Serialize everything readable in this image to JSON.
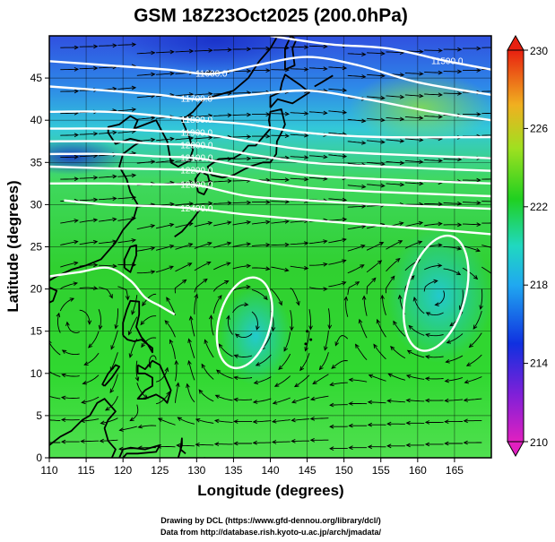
{
  "title": "GSM 18Z23Oct2025 (200.0hPa)",
  "xlabel": "Longitude (degrees)",
  "ylabel": "Latitude  (degrees)",
  "credits": [
    "Drawing by DCL (https://www.gfd-dennou.org/library/dcl/)",
    "Data from http://database.rish.kyoto-u.ac.jp/arch/jmadata/"
  ],
  "colors": {
    "low": "#d020c0",
    "mid_low": "#1030e0",
    "mid": "#20c8e8",
    "mid_high": "#20d020",
    "high": "#e82010",
    "coast": "#000000",
    "contour": "#ffffff"
  },
  "chart_data": {
    "type": "heatmap",
    "x": {
      "range": [
        110,
        170
      ],
      "ticks": [
        110,
        115,
        120,
        125,
        130,
        135,
        140,
        145,
        150,
        155,
        160,
        165
      ]
    },
    "y": {
      "range": [
        0,
        50
      ],
      "ticks": [
        0,
        5,
        10,
        15,
        20,
        25,
        30,
        35,
        40,
        45
      ]
    },
    "colorbar": {
      "range": [
        210,
        230
      ],
      "ticks": [
        "210",
        "214",
        "218",
        "222",
        "226",
        "230"
      ]
    },
    "contours": [
      {
        "label": "11500.0",
        "lon": 164,
        "lat": 47,
        "points": [
          [
            140,
            50
          ],
          [
            148,
            49
          ],
          [
            156,
            48.5
          ],
          [
            164,
            47
          ],
          [
            170,
            46
          ]
        ]
      },
      {
        "label": "11600.0",
        "lon": 132,
        "lat": 45.5,
        "points": [
          [
            110,
            47
          ],
          [
            118,
            46.5
          ],
          [
            126,
            46
          ],
          [
            132,
            45.5
          ],
          [
            138,
            46.5
          ],
          [
            145,
            47.5
          ],
          [
            152,
            46.5
          ],
          [
            160,
            44.5
          ],
          [
            170,
            43
          ]
        ]
      },
      {
        "label": "11700.0",
        "lon": 130,
        "lat": 42.5,
        "points": [
          [
            110,
            44
          ],
          [
            118,
            43.5
          ],
          [
            125,
            43
          ],
          [
            130,
            42.5
          ],
          [
            137,
            43
          ],
          [
            145,
            43.5
          ],
          [
            153,
            42.5
          ],
          [
            162,
            41
          ],
          [
            170,
            40
          ]
        ]
      },
      {
        "label": "11800.0",
        "lon": 130,
        "lat": 40,
        "points": [
          [
            110,
            41
          ],
          [
            118,
            41
          ],
          [
            125,
            40.5
          ],
          [
            130,
            40
          ],
          [
            137,
            39.5
          ],
          [
            145,
            38.5
          ],
          [
            155,
            38
          ],
          [
            170,
            38
          ]
        ]
      },
      {
        "label": "11900.0",
        "lon": 130,
        "lat": 38.5,
        "points": [
          [
            110,
            39
          ],
          [
            118,
            39
          ],
          [
            125,
            38.7
          ],
          [
            130,
            38.5
          ],
          [
            137,
            37.5
          ],
          [
            145,
            36.5
          ],
          [
            155,
            36
          ],
          [
            170,
            35.5
          ]
        ]
      },
      {
        "label": "12000.0",
        "lon": 130,
        "lat": 37,
        "points": [
          [
            110,
            37.5
          ],
          [
            118,
            37.5
          ],
          [
            125,
            37.2
          ],
          [
            130,
            37
          ],
          [
            137,
            36
          ],
          [
            145,
            35
          ],
          [
            155,
            34.5
          ],
          [
            170,
            34
          ]
        ]
      },
      {
        "label": "12100.0",
        "lon": 130,
        "lat": 35.5,
        "points": [
          [
            110,
            36
          ],
          [
            118,
            36
          ],
          [
            125,
            35.7
          ],
          [
            130,
            35.5
          ],
          [
            137,
            34.5
          ],
          [
            145,
            33.5
          ],
          [
            155,
            33
          ],
          [
            170,
            32.5
          ]
        ]
      },
      {
        "label": "12200.0",
        "lon": 130,
        "lat": 34,
        "points": [
          [
            110,
            34.5
          ],
          [
            118,
            34.3
          ],
          [
            125,
            34.2
          ],
          [
            130,
            34
          ],
          [
            137,
            33
          ],
          [
            145,
            32
          ],
          [
            155,
            31.5
          ],
          [
            170,
            31
          ]
        ]
      },
      {
        "label": "12300.0",
        "lon": 130,
        "lat": 32.3,
        "points": [
          [
            110,
            32.5
          ],
          [
            118,
            32.5
          ],
          [
            125,
            32.4
          ],
          [
            130,
            32.3
          ],
          [
            137,
            31
          ],
          [
            145,
            30.5
          ],
          [
            155,
            30
          ],
          [
            170,
            29.5
          ]
        ]
      },
      {
        "label": "12400.0",
        "lon": 130,
        "lat": 29.5,
        "points": [
          [
            112,
            30.5
          ],
          [
            118,
            30
          ],
          [
            125,
            29.8
          ],
          [
            130,
            29.5
          ],
          [
            137,
            28.8
          ],
          [
            145,
            28.2
          ],
          [
            155,
            27.5
          ],
          [
            163,
            27
          ],
          [
            170,
            26.5
          ]
        ]
      }
    ],
    "closed_contours": [
      {
        "center": [
          136.5,
          16
        ],
        "rx_deg": 3.5,
        "ry_deg": 5.5
      },
      {
        "center": [
          162.5,
          19.5
        ],
        "rx_deg": 4,
        "ry_deg": 7
      }
    ],
    "open_contour": {
      "points": [
        [
          110,
          21.5
        ],
        [
          114,
          22
        ],
        [
          118,
          22.5
        ],
        [
          121,
          21
        ],
        [
          123,
          19
        ],
        [
          125,
          18
        ],
        [
          127,
          17
        ]
      ]
    }
  }
}
